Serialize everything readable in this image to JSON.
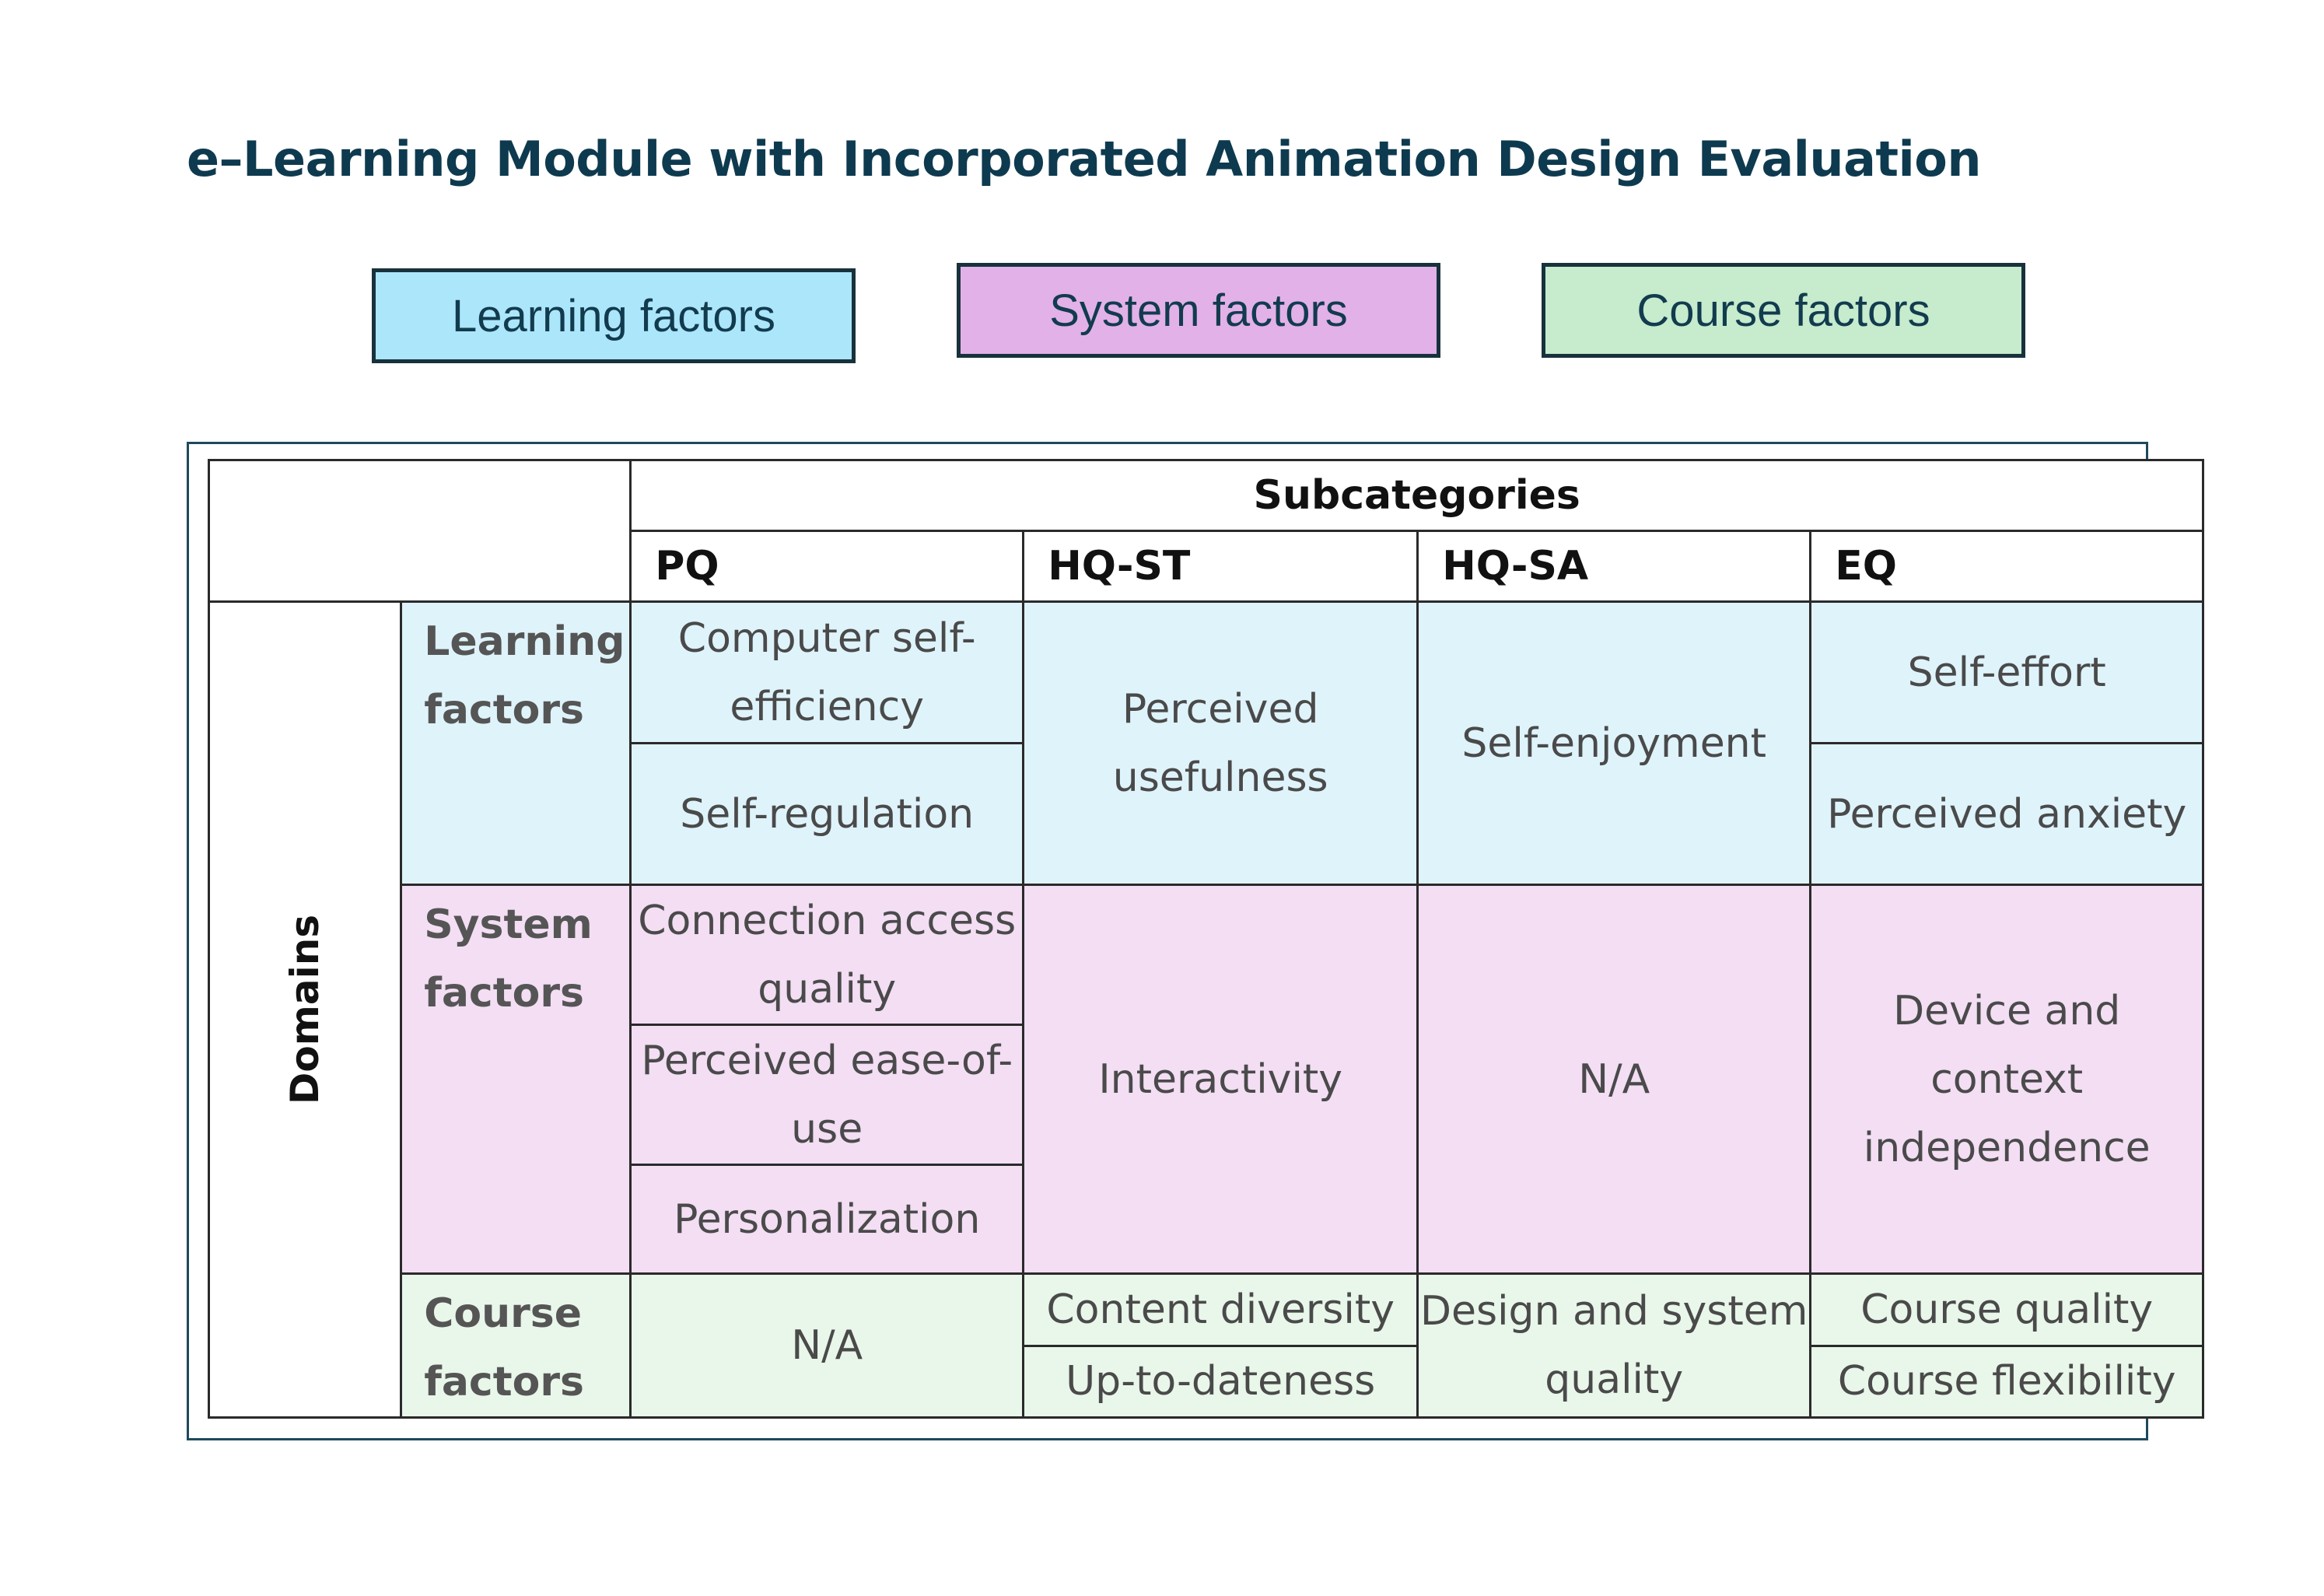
{
  "title": "e–Learning Module with Incorporated Animation Design Evaluation",
  "legend": {
    "learning": "Learning factors",
    "system": "System factors",
    "course": "Course factors"
  },
  "colors": {
    "learning_legend": "#ace6fb",
    "system_legend": "#e2b1e8",
    "course_legend": "#c6ebcd",
    "learning_cell": "#dff3fb",
    "system_cell": "#f3def4",
    "course_cell": "#e9f6ea",
    "title": "#0e3a4f"
  },
  "table": {
    "subcategories": "Subcategories",
    "columns": [
      "PQ",
      "HQ-ST",
      "HQ-SA",
      "EQ"
    ],
    "domains": "Domains",
    "learning": {
      "label": "Learning factors",
      "pq": [
        "Computer self-efficiency",
        "Self-regulation"
      ],
      "hq_st": "Perceived usefulness",
      "hq_sa": "Self-enjoyment",
      "eq": [
        "Self-effort",
        "Perceived anxiety"
      ]
    },
    "system": {
      "label": "System factors",
      "pq": [
        "Connection access quality",
        "Perceived ease-of-use",
        "Personalization"
      ],
      "hq_st": "Interactivity",
      "hq_sa": "N/A",
      "eq": "Device and context independence"
    },
    "course": {
      "label": "Course factors",
      "pq": "N/A",
      "hq_st": [
        "Content diversity",
        "Up-to-dateness"
      ],
      "hq_sa": "Design and system quality",
      "eq": [
        "Course quality",
        "Course flexibility"
      ]
    }
  }
}
